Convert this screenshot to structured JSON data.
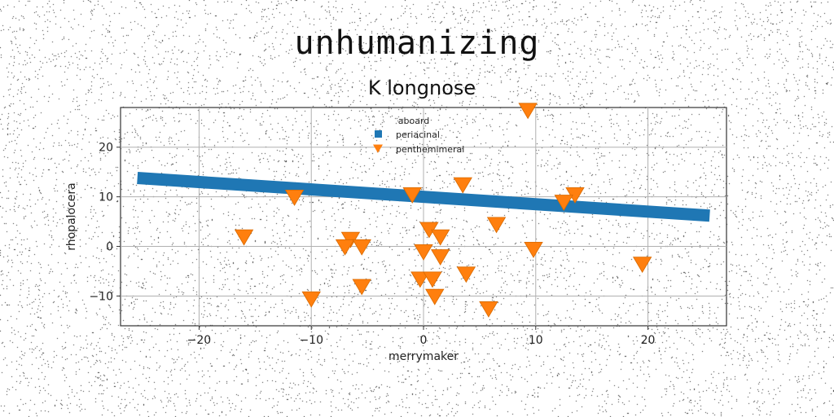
{
  "figure": {
    "suptitle": "unhumanizing"
  },
  "chart_data": {
    "type": "scatter",
    "title": "K longnose",
    "xlabel": "merrymaker",
    "ylabel": "rhopalocera",
    "xlim": [
      -27,
      27
    ],
    "ylim": [
      -16,
      28
    ],
    "xticks": [
      -20,
      -10,
      0,
      10,
      20
    ],
    "yticks": [
      -10,
      0,
      10,
      20
    ],
    "grid": true,
    "legend": {
      "title": "aboard",
      "placement": "upper center",
      "entries": [
        "periacinal",
        "penthemimeral"
      ]
    },
    "series": [
      {
        "name": "periacinal",
        "kind": "line",
        "color": "#1f77b4",
        "x": [
          -25.5,
          25.5
        ],
        "y": [
          13.8,
          6.2
        ]
      },
      {
        "name": "penthemimeral",
        "kind": "scatter",
        "marker": "triangle-down",
        "color": "#ff7f0e",
        "x": [
          9.3,
          3.5,
          -1.0,
          13.5,
          12.5,
          -11.5,
          6.5,
          -16.0,
          0.5,
          1.5,
          -6.5,
          -7.0,
          -5.5,
          0.0,
          1.5,
          9.8,
          19.5,
          3.8,
          -0.3,
          0.8,
          -5.5,
          1.0,
          -10.0,
          5.8
        ],
        "y": [
          27.5,
          12.5,
          10.5,
          10.5,
          9.0,
          10.0,
          4.5,
          2.0,
          3.5,
          2.0,
          1.5,
          0.0,
          0.0,
          -1.0,
          -2.0,
          -0.5,
          -3.5,
          -5.5,
          -6.5,
          -6.5,
          -8.0,
          -10.0,
          -10.5,
          -12.5
        ]
      }
    ]
  }
}
